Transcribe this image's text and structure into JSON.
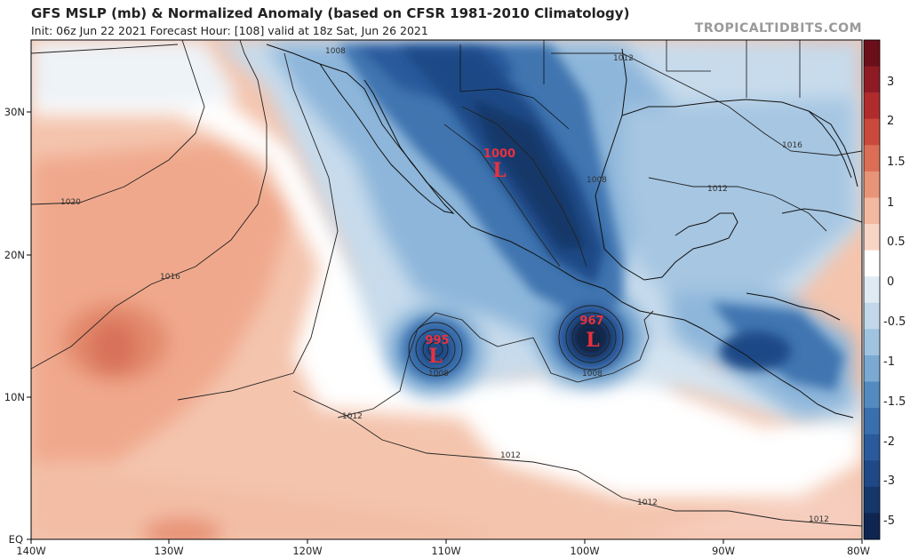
{
  "header": {
    "title": "GFS MSLP (mb) & Normalized Anomaly (based on CFSR 1981-2010 Climatology)",
    "subtitle": "Init: 06z Jun 22 2021   Forecast Hour: [108]   valid at 18z Sat, Jun 26 2021",
    "brand": "TROPICALTIDBITS.COM"
  },
  "map": {
    "lon_range": [
      -140,
      -80
    ],
    "lat_range": [
      0,
      35
    ],
    "lon_ticks": [
      "140W",
      "130W",
      "120W",
      "110W",
      "100W",
      "90W",
      "80W"
    ],
    "lat_ticks": [
      "30N",
      "20N",
      "10N",
      "EQ"
    ],
    "isobar_labels": [
      "1008",
      "1012",
      "1016",
      "1020",
      "1016",
      "1012",
      "1008",
      "1008",
      "1008",
      "1012",
      "1012",
      "1012",
      "1012"
    ],
    "lows": [
      {
        "value": "1000",
        "symbol": "L",
        "lon": -105.5,
        "lat": 26.5
      },
      {
        "value": "995",
        "symbol": "L",
        "lon": -111.0,
        "lat": 13.5
      },
      {
        "value": "967",
        "symbol": "L",
        "lon": -99.8,
        "lat": 14.2
      }
    ]
  },
  "colorbar": {
    "labels": [
      "3",
      "2",
      "1.5",
      "1",
      "0.5",
      "0",
      "-0.5",
      "-1",
      "-1.5",
      "-2",
      "-3",
      "-5"
    ],
    "colors": [
      "#6b0f1a",
      "#8e1b24",
      "#b02c2c",
      "#c94a3c",
      "#dc6e55",
      "#e89478",
      "#f2b8a0",
      "#f8d6c6",
      "#ffffff",
      "#dfeaf3",
      "#c2d8ea",
      "#a0c3df",
      "#7aa9d2",
      "#538bc0",
      "#3a6fae",
      "#2a5a9c",
      "#1f4886",
      "#163769",
      "#0d2550"
    ]
  }
}
